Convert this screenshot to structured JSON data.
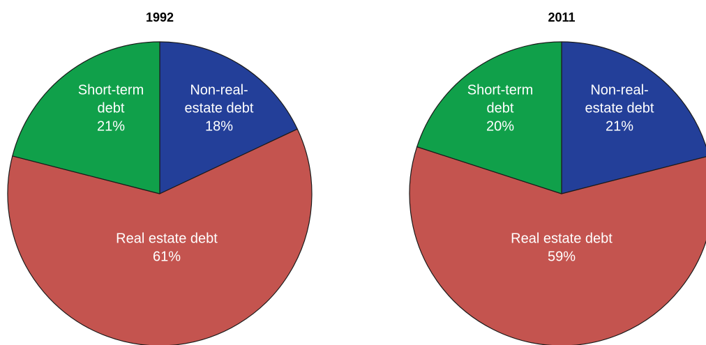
{
  "chart_data": [
    {
      "type": "pie",
      "title": "1992",
      "start_angle_deg": 0,
      "direction": "clockwise",
      "slices": [
        {
          "key": "nonre",
          "label_lines": [
            "Non-real-",
            "estate debt"
          ],
          "value": 18,
          "value_label": "18%",
          "color": "#233f99"
        },
        {
          "key": "re",
          "label_lines": [
            "Real estate debt"
          ],
          "value": 61,
          "value_label": "61%",
          "color": "#c4544f"
        },
        {
          "key": "st",
          "label_lines": [
            "Short-term",
            "debt"
          ],
          "value": 21,
          "value_label": "21%",
          "color": "#10a04a"
        }
      ]
    },
    {
      "type": "pie",
      "title": "2011",
      "start_angle_deg": 0,
      "direction": "clockwise",
      "slices": [
        {
          "key": "nonre",
          "label_lines": [
            "Non-real-",
            "estate debt"
          ],
          "value": 21,
          "value_label": "21%",
          "color": "#233f99"
        },
        {
          "key": "re",
          "label_lines": [
            "Real estate debt"
          ],
          "value": 59,
          "value_label": "59%",
          "color": "#c4544f"
        },
        {
          "key": "st",
          "label_lines": [
            "Short-term",
            "debt"
          ],
          "value": 20,
          "value_label": "20%",
          "color": "#10a04a"
        }
      ]
    }
  ]
}
